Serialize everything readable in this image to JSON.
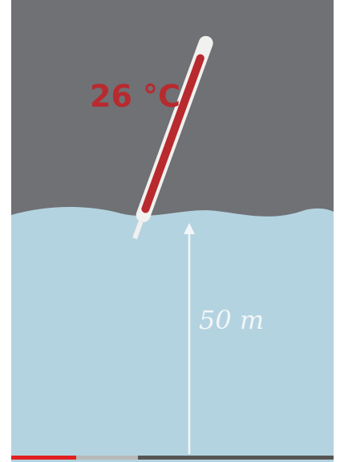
{
  "labels": {
    "temperature": "26 °C",
    "depth": "50 m"
  }
}
